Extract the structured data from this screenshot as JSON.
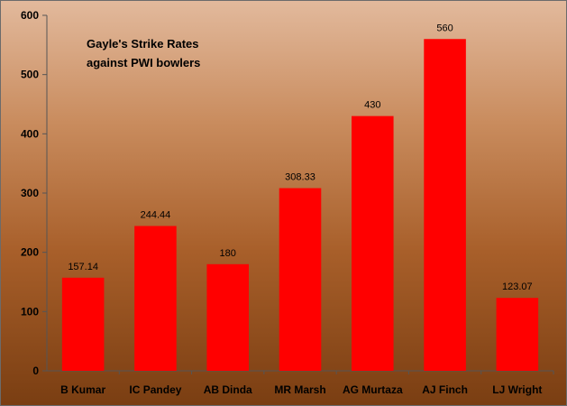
{
  "chart_data": {
    "type": "bar",
    "title_lines": [
      "Gayle's Strike Rates",
      "against PWI bowlers"
    ],
    "categories": [
      "B Kumar",
      "IC Pandey",
      "AB Dinda",
      "MR Marsh",
      "AG Murtaza",
      "AJ Finch",
      "LJ Wright"
    ],
    "values": [
      157.14,
      244.44,
      180,
      308.33,
      430,
      560,
      123.07
    ],
    "data_labels": [
      "157.14",
      "244.44",
      "180",
      "308.33",
      "430",
      "560",
      "123.07"
    ],
    "xlabel": "",
    "ylabel": "",
    "ylim": [
      0,
      600
    ],
    "yticks": [
      0,
      100,
      200,
      300,
      400,
      500,
      600
    ],
    "grid": false,
    "legend": "none",
    "bar_color": "#ff0000",
    "background_top": "#e2b99c",
    "background_bottom": "#7a3e12"
  }
}
